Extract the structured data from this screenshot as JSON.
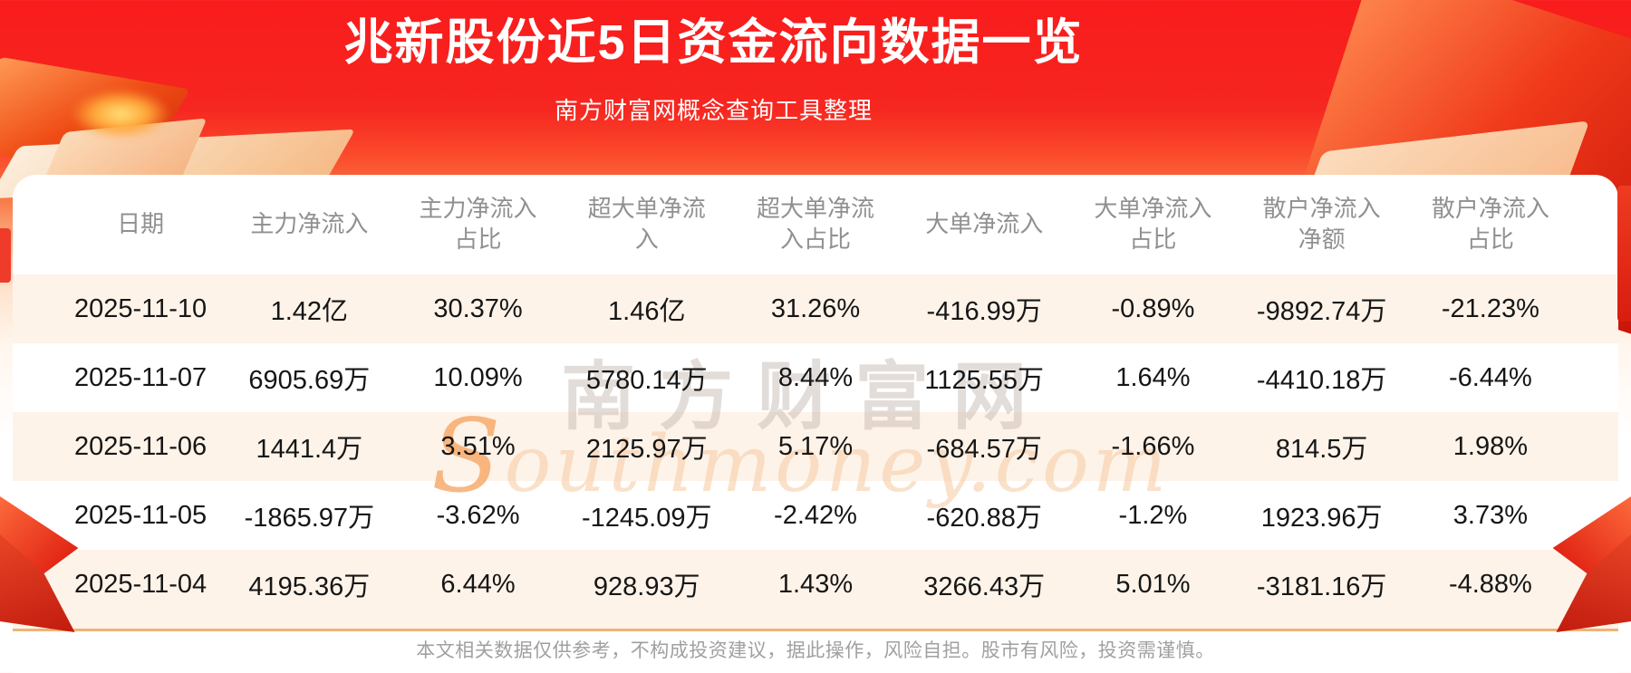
{
  "banner": {
    "title": "兆新股份近5日资金流向数据一览",
    "subtitle": "南方财富网概念查询工具整理"
  },
  "table": {
    "headers_display": [
      "日期",
      "主力净流入",
      "主力净流入\n占比",
      "超大单净流\n入",
      "超大单净流\n入占比",
      "大单净流入",
      "大单净流入\n占比",
      "散户净流入\n净额",
      "散户净流入\n占比"
    ]
  },
  "chart_data": {
    "type": "table",
    "title": "兆新股份近5日资金流向数据一览",
    "columns": [
      "日期",
      "主力净流入",
      "主力净流入占比",
      "超大单净流入",
      "超大单净流入占比",
      "大单净流入",
      "大单净流入占比",
      "散户净流入净额",
      "散户净流入占比"
    ],
    "rows": [
      [
        "2025-11-10",
        "1.42亿",
        "30.37%",
        "1.46亿",
        "31.26%",
        "-416.99万",
        "-0.89%",
        "-9892.74万",
        "-21.23%"
      ],
      [
        "2025-11-07",
        "6905.69万",
        "10.09%",
        "5780.14万",
        "8.44%",
        "1125.55万",
        "1.64%",
        "-4410.18万",
        "-6.44%"
      ],
      [
        "2025-11-06",
        "1441.4万",
        "3.51%",
        "2125.97万",
        "5.17%",
        "-684.57万",
        "-1.66%",
        "814.5万",
        "1.98%"
      ],
      [
        "2025-11-05",
        "-1865.97万",
        "-3.62%",
        "-1245.09万",
        "-2.42%",
        "-620.88万",
        "-1.2%",
        "1923.96万",
        "3.73%"
      ],
      [
        "2025-11-04",
        "4195.36万",
        "6.44%",
        "928.93万",
        "1.43%",
        "3266.43万",
        "5.01%",
        "-3181.16万",
        "-4.88%"
      ]
    ]
  },
  "watermark": {
    "cn": "南方财富网",
    "en": "Southmoney.com"
  },
  "footer": {
    "disclaimer": "本文相关数据仅供参考，不构成投资建议，据此操作，风险自担。股市有风险，投资需谨慎。"
  },
  "colors": {
    "banner_red": "#f91c1c",
    "banner_orange": "#f97c4a",
    "row_stripe": "#fdf3e9",
    "separator_orange": "#eeb379",
    "header_gray": "#909090",
    "data_text": "#161616",
    "footer_gray": "#a0a0a0"
  }
}
